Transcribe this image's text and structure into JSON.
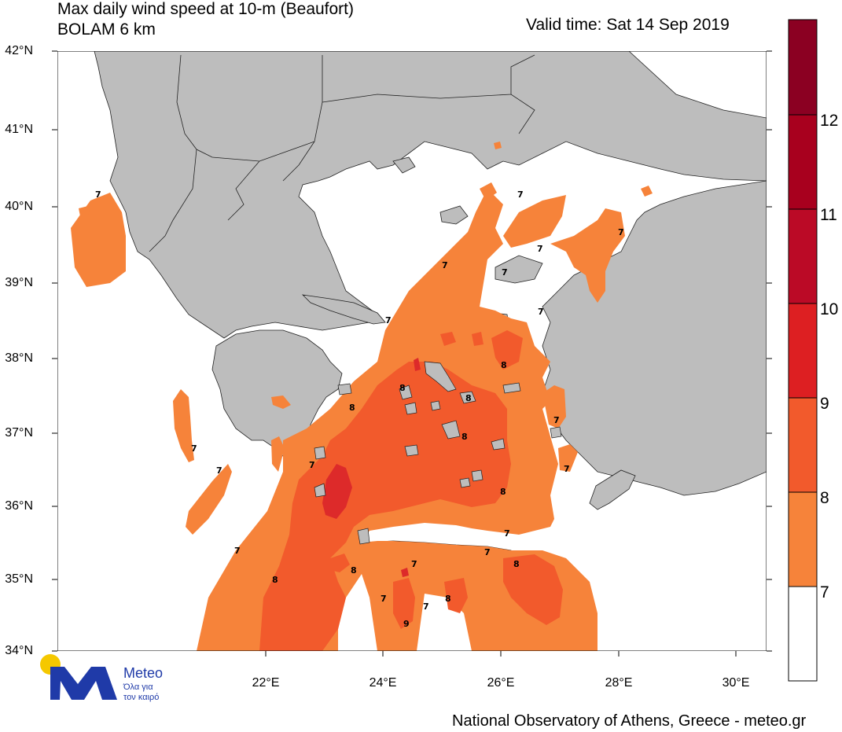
{
  "header": {
    "title_line1": "Max daily wind speed at 10-m (Beaufort)",
    "title_line2": "BOLAM 6 km",
    "valid_time": "Valid time: Sat 14 Sep 2019"
  },
  "footer": {
    "credit": "National Observatory of Athens, Greece - meteo.gr"
  },
  "logo": {
    "name": "Meteo",
    "tagline_1": "Όλα για",
    "tagline_2": "τον καιρό",
    "sun_color": "#f5c800",
    "mark_color": "#1f3aa8"
  },
  "map": {
    "lat_labels": [
      "42°N",
      "41°N",
      "40°N",
      "39°N",
      "38°N",
      "37°N",
      "36°N",
      "35°N",
      "34°N"
    ],
    "lon_labels": [
      "22°E",
      "24°E",
      "26°E",
      "28°E",
      "30°E"
    ],
    "land_color": "#bdbdbd",
    "sea_color": "#ffffff",
    "contour_labels": [
      {
        "text": "7"
      },
      {
        "text": "7"
      },
      {
        "text": "7"
      },
      {
        "text": "7"
      },
      {
        "text": "7"
      },
      {
        "text": "7"
      },
      {
        "text": "7"
      },
      {
        "text": "7"
      },
      {
        "text": "7"
      },
      {
        "text": "7"
      },
      {
        "text": "7"
      },
      {
        "text": "7"
      },
      {
        "text": "7"
      },
      {
        "text": "7"
      },
      {
        "text": "7"
      },
      {
        "text": "7"
      },
      {
        "text": "7"
      },
      {
        "text": "7"
      },
      {
        "text": "7"
      },
      {
        "text": "8"
      },
      {
        "text": "8"
      },
      {
        "text": "8"
      },
      {
        "text": "8"
      },
      {
        "text": "8"
      },
      {
        "text": "8"
      },
      {
        "text": "8"
      },
      {
        "text": "8"
      },
      {
        "text": "8"
      },
      {
        "text": "8"
      },
      {
        "text": "9"
      }
    ]
  },
  "colorbar": {
    "labels": [
      "12",
      "11",
      "10",
      "9",
      "8",
      "7"
    ],
    "colors": [
      "#8b0022",
      "#b3001f",
      "#c8102e",
      "#dd2a2a",
      "#f25a2c",
      "#f6833a",
      "#ffffff"
    ]
  }
}
